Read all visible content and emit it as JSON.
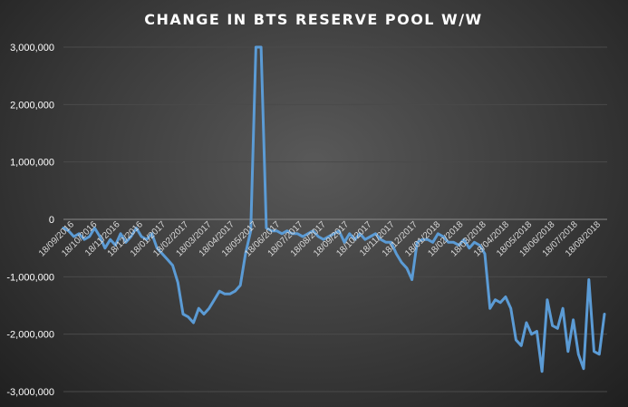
{
  "chart_data": {
    "type": "line",
    "title": "CHANGE IN BTS RESERVE POOL W/W",
    "xlabel": "",
    "ylabel": "",
    "ylim": [
      -3000000,
      3000000
    ],
    "yticks": [
      3000000,
      2000000,
      1000000,
      0,
      -1000000,
      -2000000,
      -3000000
    ],
    "ytick_labels": [
      "3,000,000",
      "2,000,000",
      "1,000,000",
      "0",
      "-1,000,000",
      "-2,000,000",
      "-3,000,000"
    ],
    "x_tick_labels": [
      "18/09/2016",
      "18/10/2016",
      "18/11/2016",
      "18/12/2016",
      "18/01/2017",
      "18/02/2017",
      "18/03/2017",
      "18/04/2017",
      "18/05/2017",
      "18/06/2017",
      "18/07/2017",
      "18/08/2017",
      "18/09/2017",
      "18/10/2017",
      "18/11/2017",
      "18/12/2017",
      "18/01/2018",
      "18/02/2018",
      "18/03/2018",
      "18/04/2018",
      "18/05/2018",
      "18/06/2018",
      "18/07/2018",
      "18/08/2018"
    ],
    "grid": true,
    "legend": "none",
    "line_color": "#5b9bd5",
    "series": [
      {
        "values": [
          -150000,
          -200000,
          -300000,
          -250000,
          -350000,
          -300000,
          -150000,
          -300000,
          -500000,
          -350000,
          -450000,
          -250000,
          -400000,
          -300000,
          -150000,
          -300000,
          -350000,
          -250000,
          -500000,
          -600000,
          -700000,
          -800000,
          -1100000,
          -1650000,
          -1700000,
          -1800000,
          -1550000,
          -1650000,
          -1550000,
          -1400000,
          -1250000,
          -1300000,
          -1300000,
          -1250000,
          -1150000,
          -600000,
          -200000,
          3000000,
          3000000,
          -150000,
          -200000,
          -200000,
          -250000,
          -200000,
          -250000,
          -250000,
          -300000,
          -250000,
          -200000,
          -300000,
          -350000,
          -300000,
          -250000,
          -200000,
          -400000,
          -250000,
          -350000,
          -250000,
          -350000,
          -300000,
          -250000,
          -350000,
          -400000,
          -400000,
          -600000,
          -750000,
          -850000,
          -1050000,
          -400000,
          -350000,
          -350000,
          -400000,
          -250000,
          -300000,
          -400000,
          -400000,
          -450000,
          -350000,
          -500000,
          -400000,
          -450000,
          -600000,
          -1550000,
          -1400000,
          -1450000,
          -1350000,
          -1550000,
          -2100000,
          -2200000,
          -1800000,
          -2000000,
          -1950000,
          -2650000,
          -1400000,
          -1850000,
          -1900000,
          -1550000,
          -2300000,
          -1750000,
          -2350000,
          -2600000,
          -1050000,
          -2300000,
          -2350000,
          -1650000
        ]
      }
    ]
  }
}
